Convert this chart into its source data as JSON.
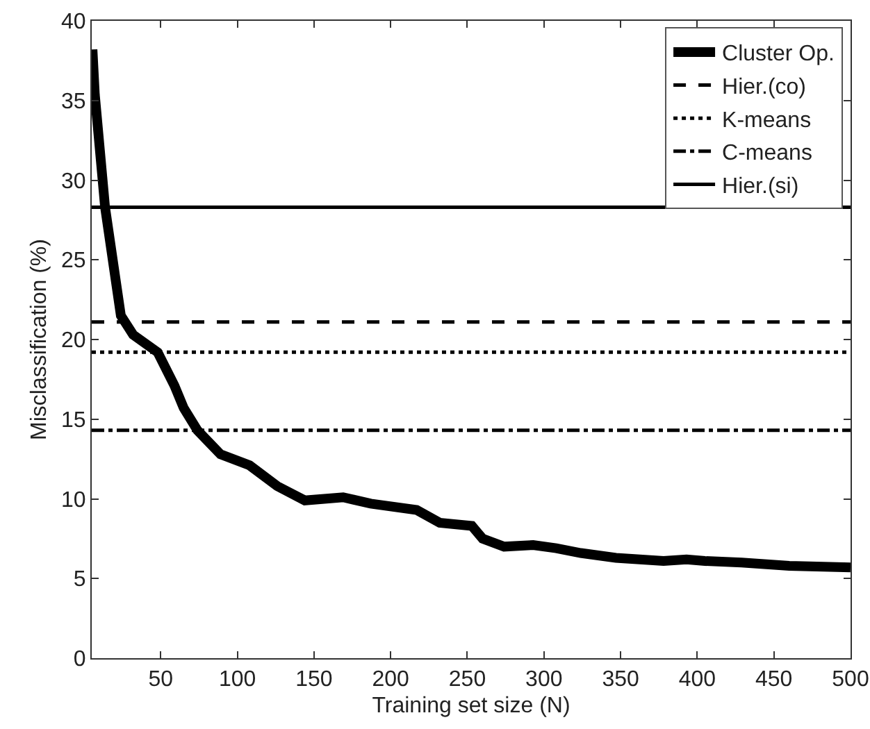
{
  "chart_data": {
    "type": "line",
    "xlabel": "Training set size (N)",
    "ylabel": "Misclassification (%)",
    "xlim": [
      5,
      500
    ],
    "xticks": [
      50,
      100,
      150,
      200,
      250,
      300,
      350,
      400,
      450,
      500
    ],
    "ylim": [
      0,
      40
    ],
    "yticks": [
      0,
      5,
      10,
      15,
      20,
      25,
      30,
      35,
      40
    ],
    "grid": false,
    "legend": "top right",
    "marker": "none",
    "series": [
      {
        "name": "Cluster Op.",
        "color": "#000000",
        "line_style": "solid",
        "x": [
          5.5,
          7,
          13.7,
          24,
          32,
          48,
          59,
          65,
          74,
          89,
          108,
          126,
          144,
          169,
          187,
          217,
          232,
          253,
          260,
          274,
          293,
          308,
          324,
          347,
          378,
          393,
          405,
          429,
          460,
          500
        ],
        "values": [
          38.2,
          35.4,
          28.3,
          21.5,
          20.3,
          19.2,
          17.1,
          15.7,
          14.3,
          12.8,
          12.1,
          10.8,
          9.9,
          10.1,
          9.7,
          9.3,
          8.5,
          8.3,
          7.5,
          7.0,
          7.1,
          6.9,
          6.6,
          6.3,
          6.1,
          6.2,
          6.1,
          6.0,
          5.8,
          5.7
        ]
      },
      {
        "name": "Hier.(co)",
        "color": "#000000",
        "line_style": "dashed",
        "x": [
          5,
          500
        ],
        "values": [
          21.1,
          21.1
        ]
      },
      {
        "name": "K-means",
        "color": "#000000",
        "line_style": "dotted",
        "x": [
          5,
          500
        ],
        "values": [
          19.2,
          19.2
        ]
      },
      {
        "name": "C-means",
        "color": "#000000",
        "line_style": "dashdot",
        "x": [
          5,
          500
        ],
        "values": [
          14.3,
          14.3
        ]
      },
      {
        "name": "Hier.(si)",
        "color": "#000000",
        "line_style": "solid",
        "x": [
          5,
          500
        ],
        "values": [
          28.3,
          28.3
        ]
      }
    ]
  }
}
